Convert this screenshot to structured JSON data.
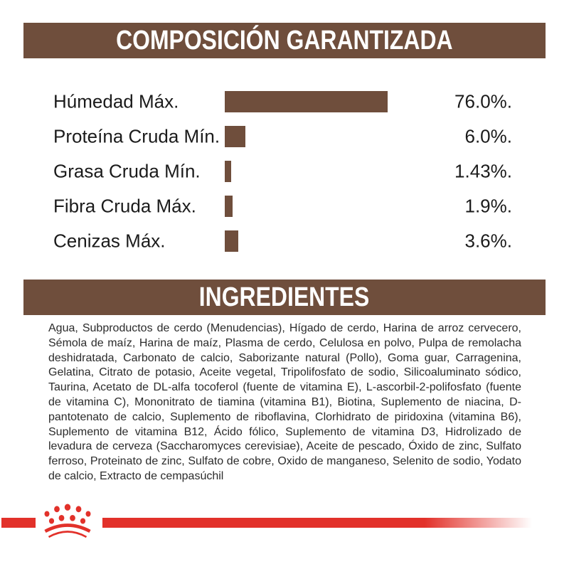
{
  "colors": {
    "brown": "#6F4E3C",
    "red": "#E2312A",
    "text-dark": "#1B1B1B",
    "text-body": "#2B2B2B",
    "white": "#FFFFFF"
  },
  "header": {
    "title": "COMPOSICIÓN GARANTIZADA"
  },
  "chart_data": {
    "type": "bar",
    "orientation": "horizontal",
    "title": "COMPOSICIÓN GARANTIZADA",
    "categories": [
      "Húmedad Máx.",
      "Proteína Cruda Mín.",
      "Grasa Cruda Mín.",
      "Fibra Cruda Máx.",
      "Cenizas Máx."
    ],
    "values": [
      76.0,
      6.0,
      1.43,
      1.9,
      3.6
    ],
    "value_labels": [
      "76.0%.",
      "6.0%.",
      "1.43%.",
      "1.9%.",
      "3.6%."
    ],
    "unit": "%",
    "bar_color": "#6F4E3C",
    "xlim": [
      0,
      76
    ],
    "grid": false,
    "legend": false
  },
  "ingredients": {
    "title": "INGREDIENTES",
    "text": "Agua, Subproductos de cerdo (Menudencias), Hígado de cerdo, Harina de arroz cervecero, Sémola de maíz, Harina de maíz, Plasma de cerdo, Celulosa en polvo, Pulpa de remolacha deshidratada, Carbonato de calcio, Saborizante natural (Pollo), Goma guar, Carragenina, Gelatina, Citrato de potasio, Aceite vegetal, Tripolifosfato de sodio, Silicoaluminato sódico, Taurina, Acetato de DL-alfa tocoferol (fuente de vitamina E), L-ascorbil-2-polifosfato (fuente de vitamina C), Mononitrato de tiamina (vitamina B1), Biotina, Suplemento de niacina, D-pantotenato de calcio, Suplemento de riboflavina, Clorhidrato de piridoxina (vitamina B6), Suplemento de vitamina B12, Ácido fólico, Suplemento de vitamina D3, Hidrolizado de levadura de cerveza (Saccharomyces cerevisiae), Aceite de pescado, Óxido de zinc, Sulfato ferroso, Proteinato de zinc, Sulfato de cobre, Oxido de manganeso, Selenito de sodio, Yodato de calcio, Extracto de cempasúchil"
  },
  "footer": {
    "logo": "royal-canin-crown-paw"
  }
}
